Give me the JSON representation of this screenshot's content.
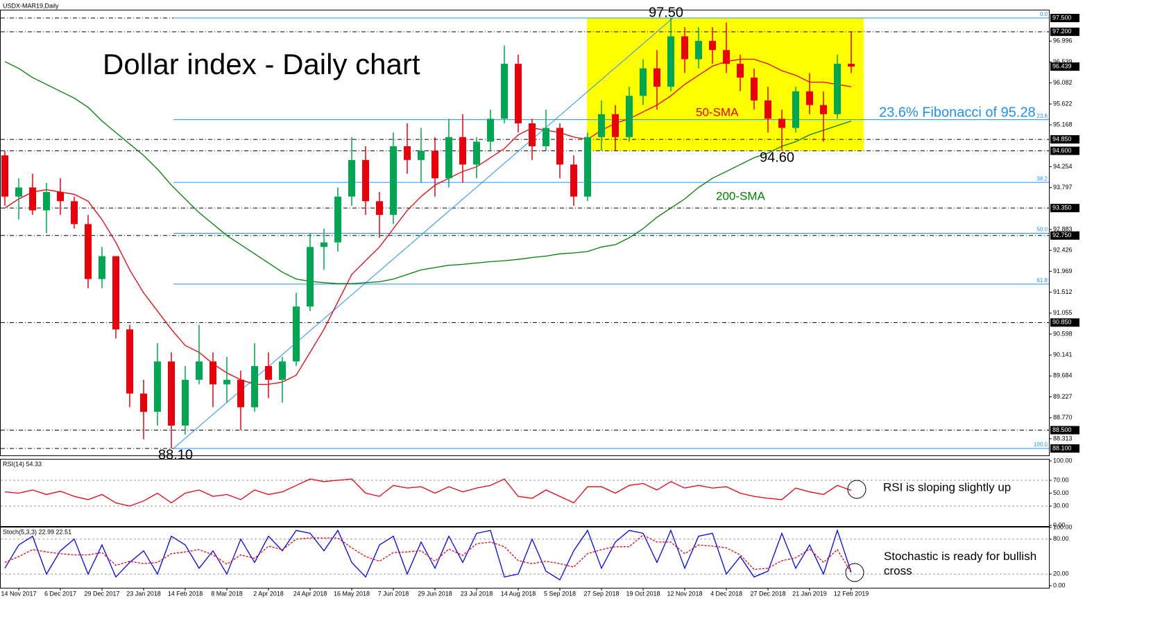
{
  "chart_data": [
    {
      "type": "candlestick",
      "title": "USDX-MAR19,Daily",
      "categories": [
        null,
        "14 Nov 2017",
        null,
        null,
        "6 Dec 2017",
        null,
        null,
        "29 Dec 2017",
        null,
        null,
        "23 Jan 2018",
        null,
        null,
        "14 Feb 2018",
        null,
        null,
        "8 Mar 2018",
        null,
        null,
        "2 Apr 2018",
        null,
        null,
        "24 Apr 2018",
        null,
        null,
        "16 May 2018",
        null,
        null,
        "7 Jun 2018",
        null,
        null,
        "29 Jun 2018",
        null,
        null,
        "23 Jul 2018",
        null,
        null,
        "14 Aug 2018",
        null,
        null,
        "5 Sep 2018",
        null,
        null,
        "27 Sep 2018",
        null,
        null,
        "19 Oct 2018",
        null,
        null,
        "12 Nov 2018",
        null,
        null,
        "4 Dec 2018",
        null,
        null,
        "27 Dec 2018",
        null,
        null,
        "21 Jan 2019",
        null,
        null,
        "12 Feb 2019"
      ],
      "open": [
        94.5,
        93.6,
        93.8,
        93.3,
        93.7,
        93.5,
        93.0,
        91.8,
        92.3,
        90.7,
        89.3,
        88.9,
        90.0,
        88.6,
        89.6,
        90.0,
        89.5,
        89.6,
        89.0,
        89.9,
        89.6,
        90.0,
        91.2,
        92.5,
        92.6,
        93.6,
        94.4,
        93.5,
        93.2,
        94.7,
        94.4,
        94.6,
        94.0,
        94.9,
        94.3,
        94.8,
        95.3,
        96.5,
        95.2,
        94.7,
        95.1,
        94.3,
        93.6,
        94.9,
        95.4,
        94.9,
        95.8,
        96.4,
        96.0,
        97.1,
        96.6,
        97.0,
        96.8,
        96.5,
        96.2,
        95.7,
        95.3,
        95.1,
        95.9,
        95.6,
        95.4,
        96.5
      ],
      "high": [
        94.6,
        94.0,
        94.1,
        93.9,
        94.0,
        93.6,
        93.2,
        92.5,
        92.3,
        90.8,
        89.6,
        90.4,
        90.2,
        89.9,
        90.8,
        90.2,
        90.1,
        89.8,
        90.4,
        90.2,
        90.1,
        91.5,
        92.8,
        92.9,
        93.8,
        94.9,
        94.7,
        93.7,
        95.0,
        95.2,
        95.1,
        94.9,
        95.3,
        95.4,
        94.9,
        95.5,
        96.9,
        96.7,
        95.3,
        95.5,
        95.2,
        94.5,
        95.0,
        95.7,
        95.6,
        96.0,
        96.6,
        96.8,
        97.5,
        97.3,
        97.3,
        97.3,
        97.4,
        96.7,
        96.4,
        96.0,
        95.5,
        96.0,
        96.3,
        95.9,
        96.7,
        97.2
      ],
      "low": [
        93.4,
        93.1,
        93.2,
        92.8,
        93.2,
        92.9,
        91.6,
        91.6,
        90.5,
        89.0,
        88.3,
        88.6,
        88.1,
        88.4,
        89.5,
        89.0,
        89.1,
        88.5,
        88.9,
        89.2,
        89.1,
        89.9,
        91.1,
        92.0,
        92.4,
        93.4,
        93.2,
        92.7,
        93.0,
        94.1,
        93.9,
        93.6,
        93.8,
        93.9,
        94.0,
        94.6,
        95.2,
        95.0,
        94.4,
        94.6,
        94.0,
        93.4,
        93.5,
        94.6,
        94.6,
        94.8,
        95.6,
        95.5,
        95.9,
        96.3,
        96.4,
        96.5,
        96.3,
        95.9,
        95.5,
        95.0,
        94.6,
        95.0,
        95.4,
        94.8,
        95.3,
        96.3
      ],
      "close": [
        93.6,
        93.8,
        93.3,
        93.7,
        93.5,
        93.0,
        91.8,
        92.3,
        90.7,
        89.3,
        88.9,
        90.0,
        88.6,
        89.6,
        90.0,
        89.5,
        89.6,
        89.0,
        89.9,
        89.6,
        90.0,
        91.2,
        92.5,
        92.6,
        93.6,
        94.4,
        93.5,
        93.2,
        94.7,
        94.4,
        94.6,
        94.0,
        94.9,
        94.3,
        94.8,
        95.3,
        96.5,
        95.2,
        94.7,
        95.1,
        94.3,
        93.6,
        94.9,
        95.4,
        94.9,
        95.8,
        96.4,
        96.0,
        97.1,
        96.6,
        97.0,
        96.8,
        96.5,
        96.2,
        95.7,
        95.3,
        95.1,
        95.9,
        95.6,
        95.4,
        96.5,
        96.439
      ],
      "up_color": "#00a651",
      "down_color": "#e8000b",
      "series": [
        {
          "name": "50-SMA",
          "color": "#e8000b",
          "values": [
            93.35,
            93.55,
            93.7,
            93.75,
            93.7,
            93.65,
            93.5,
            93.1,
            92.6,
            92.0,
            91.5,
            91.1,
            90.7,
            90.35,
            90.2,
            89.95,
            89.75,
            89.6,
            89.5,
            89.5,
            89.55,
            89.7,
            90.2,
            90.7,
            91.3,
            91.9,
            92.2,
            92.5,
            92.9,
            93.3,
            93.6,
            93.85,
            94.0,
            94.15,
            94.25,
            94.45,
            94.65,
            94.95,
            95.1,
            95.05,
            95.0,
            94.9,
            94.85,
            95.05,
            95.2,
            95.3,
            95.45,
            95.6,
            95.8,
            96.05,
            96.25,
            96.45,
            96.55,
            96.6,
            96.6,
            96.5,
            96.35,
            96.25,
            96.1,
            96.1,
            96.05,
            96.0
          ]
        },
        {
          "name": "200-SMA",
          "color": "#008000",
          "values": [
            96.55,
            96.4,
            96.2,
            96.05,
            95.9,
            95.75,
            95.55,
            95.25,
            95.0,
            94.75,
            94.5,
            94.2,
            93.85,
            93.55,
            93.25,
            93.0,
            92.75,
            92.55,
            92.35,
            92.15,
            91.95,
            91.8,
            91.75,
            91.72,
            91.7,
            91.7,
            91.72,
            91.74,
            91.8,
            91.9,
            92.0,
            92.05,
            92.1,
            92.12,
            92.15,
            92.18,
            92.2,
            92.23,
            92.27,
            92.3,
            92.35,
            92.37,
            92.4,
            92.5,
            92.55,
            92.7,
            92.9,
            93.15,
            93.35,
            93.55,
            93.8,
            94.0,
            94.15,
            94.3,
            94.45,
            94.55,
            94.7,
            94.8,
            94.95,
            95.05,
            95.15,
            95.25
          ]
        }
      ],
      "ylim": [
        87.98,
        97.68
      ],
      "yticks": [
        96.996,
        96.539,
        96.082,
        95.622,
        95.168,
        94.254,
        93.797,
        92.883,
        92.426,
        91.969,
        91.512,
        91.055,
        90.598,
        90.141,
        89.684,
        89.227,
        {
          "value": 88.77,
          "label": "88.770"
        },
        88.313
      ],
      "levels": [
        {
          "value": 97.5,
          "label": "97.500"
        },
        {
          "value": 97.2,
          "label": "97.200"
        },
        {
          "value": 94.85,
          "label": "94.850"
        },
        {
          "value": 94.6,
          "label": "94.600"
        },
        {
          "value": 93.35,
          "label": "93.350"
        },
        {
          "value": 92.75,
          "label": "92.750"
        },
        {
          "value": 90.85,
          "label": "90.850"
        },
        {
          "value": 88.5,
          "label": "88.500"
        },
        {
          "value": 88.1,
          "label": "88.100"
        }
      ],
      "current_price": 96.439,
      "fib_color": "#1e90ff",
      "fib": [
        {
          "ratio": {
            "value": 0,
            "label": "0.0"
          },
          "price": 97.5
        },
        {
          "ratio": 23.6,
          "price": 95.28
        },
        {
          "ratio": 38.2,
          "price": 93.91
        },
        {
          "ratio": {
            "value": 50,
            "label": "50.0"
          },
          "price": 92.8
        },
        {
          "ratio": 61.8,
          "price": 91.69
        },
        {
          "ratio": {
            "value": 100,
            "label": "100.0"
          },
          "price": 88.1
        }
      ],
      "zone": {
        "top": 97.5,
        "bottom": 94.6,
        "color": "#ffff00"
      },
      "annotations": {
        "headline": "Dollar index - Daily chart",
        "high": "97.50",
        "low": "94.60",
        "start": "88.10",
        "fib_note": "23.6% Fibonacci of 95.28"
      }
    },
    {
      "type": "line",
      "title": "RSI(14) 54.33",
      "color": "#e8000b",
      "values": [
        52,
        50,
        55,
        48,
        53,
        45,
        40,
        48,
        35,
        30,
        38,
        50,
        35,
        50,
        55,
        45,
        48,
        40,
        55,
        48,
        52,
        62,
        72,
        68,
        70,
        72,
        50,
        45,
        62,
        58,
        60,
        50,
        60,
        52,
        58,
        62,
        72,
        45,
        42,
        55,
        45,
        35,
        60,
        60,
        50,
        62,
        65,
        55,
        68,
        58,
        62,
        58,
        60,
        50,
        45,
        42,
        40,
        58,
        52,
        48,
        62,
        54.33
      ],
      "ylim": [
        0,
        100
      ],
      "yticks": [
        {
          "value": 100,
          "label": "100.00"
        },
        {
          "value": 70,
          "label": "70.00"
        },
        {
          "value": 50,
          "label": "50.00"
        },
        {
          "value": 30,
          "label": "30.00"
        },
        {
          "value": 0,
          "label": "0.00"
        }
      ],
      "levels": [
        70,
        30
      ],
      "note": "RSI is sloping slightly up"
    },
    {
      "type": "line",
      "title": "Stoch(5,3,3) 22.99 22.51",
      "series": [
        {
          "color": "#0000ff",
          "values": [
            30,
            70,
            85,
            20,
            60,
            80,
            20,
            70,
            15,
            40,
            60,
            20,
            85,
            70,
            30,
            60,
            20,
            80,
            40,
            85,
            60,
            95,
            90,
            60,
            95,
            40,
            15,
            70,
            85,
            20,
            75,
            30,
            85,
            40,
            90,
            95,
            15,
            20,
            80,
            25,
            10,
            60,
            95,
            30,
            75,
            95,
            90,
            40,
            95,
            30,
            85,
            90,
            20,
            50,
            15,
            25,
            90,
            30,
            70,
            20,
            95,
            22.99
          ]
        },
        {
          "color": "#e8000b",
          "dashed": true,
          "values": [
            40,
            50,
            62,
            58,
            55,
            53,
            53,
            57,
            35,
            42,
            38,
            40,
            55,
            58,
            62,
            53,
            37,
            53,
            47,
            68,
            62,
            80,
            82,
            82,
            82,
            65,
            50,
            42,
            57,
            58,
            60,
            42,
            63,
            52,
            72,
            75,
            67,
            43,
            38,
            42,
            38,
            32,
            55,
            62,
            67,
            67,
            87,
            75,
            75,
            55,
            70,
            68,
            65,
            53,
            28,
            30,
            43,
            48,
            63,
            40,
            62,
            22.51
          ]
        }
      ],
      "ylim": [
        0,
        100
      ],
      "yticks": [
        {
          "value": 100,
          "label": "100.00"
        },
        {
          "value": 80,
          "label": "80.00"
        },
        {
          "value": 20,
          "label": "20.00"
        },
        {
          "value": 0,
          "label": "0.00"
        }
      ],
      "levels": [
        80,
        20
      ],
      "note": "Stochastic is ready for bullish cross"
    }
  ]
}
